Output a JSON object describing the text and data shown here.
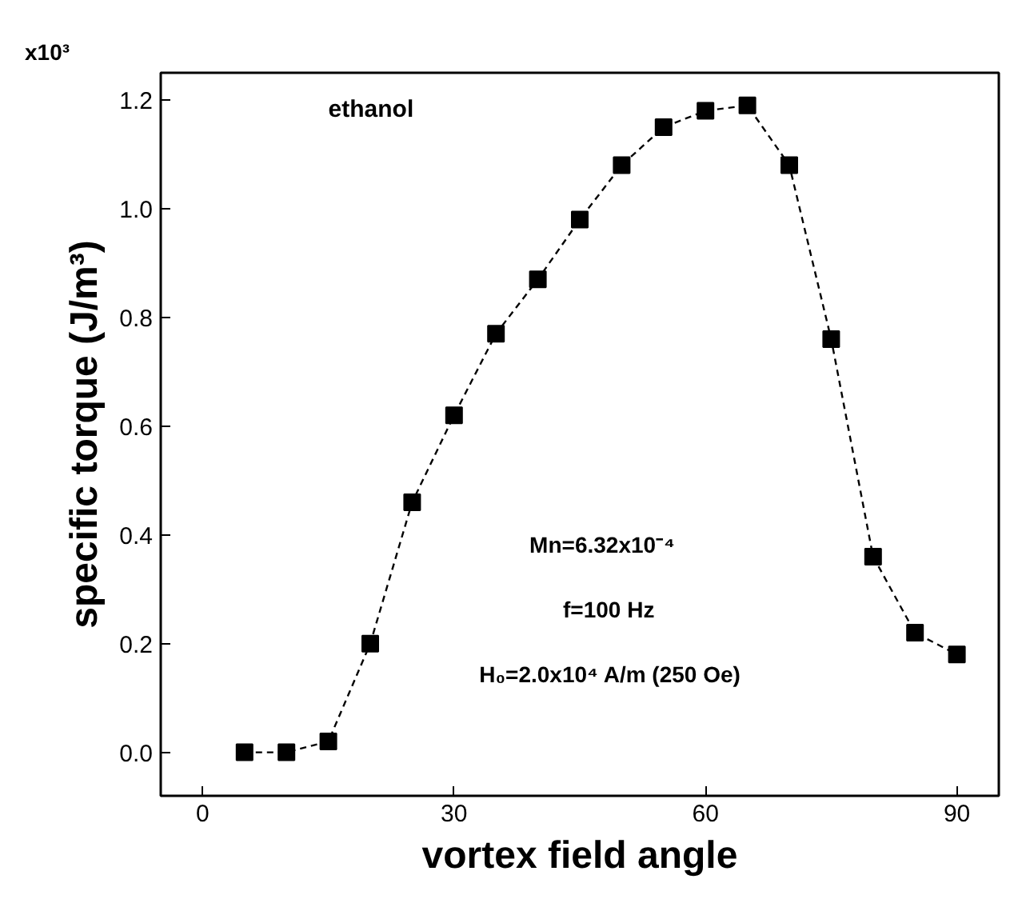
{
  "chart_data": {
    "type": "line",
    "xlabel": "vortex field angle",
    "ylabel": "specific torque (J/m³)",
    "x": [
      5,
      10,
      15,
      20,
      25,
      30,
      35,
      40,
      45,
      50,
      55,
      60,
      65,
      70,
      75,
      80,
      85,
      90
    ],
    "series": [
      {
        "color": "#000000",
        "values": [
          0.0,
          0.0,
          0.02,
          0.2,
          0.46,
          0.62,
          0.77,
          0.87,
          0.98,
          1.08,
          1.15,
          1.18,
          1.19,
          1.08,
          0.76,
          0.36,
          0.22,
          0.18
        ]
      }
    ],
    "xlim": [
      -5,
      95
    ],
    "ylim": [
      -0.08,
      1.25
    ],
    "xticks": [
      0,
      30,
      60,
      90
    ],
    "yticks": [
      {
        "value": 0,
        "label": "0.0"
      },
      {
        "value": 0.2,
        "label": "0.2"
      },
      {
        "value": 0.4,
        "label": "0.4"
      },
      {
        "value": 0.6,
        "label": "0.6"
      },
      {
        "value": 0.8,
        "label": "0.8"
      },
      {
        "value": 1.0,
        "label": "1.0"
      },
      {
        "value": 1.2,
        "label": "1.2"
      }
    ],
    "annotations": [
      "x10³",
      "ethanol",
      "Mn=6.32x10⁻⁴",
      "f=100 Hz",
      "H₀=2.0x10⁴ A/m (250 Oe)"
    ],
    "marker": "square",
    "line_style": "dashed",
    "grid": false
  }
}
